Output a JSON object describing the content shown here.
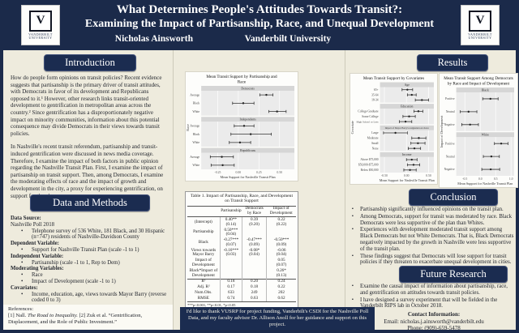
{
  "header": {
    "title_line1": "What Determines People's Attitudes Towards Transit?:",
    "title_line2": "Examining the Impact of Partisanship, Race, and Unequal Development",
    "author": "Nicholas Ainsworth",
    "affiliation": "Vanderbilt University",
    "logo": {
      "letter": "V",
      "name_line1": "VANDERBILT",
      "name_line2": "UNIVERSITY"
    }
  },
  "colors": {
    "navy": "#1b2a4a",
    "cream": "#eeebdd",
    "panel": "#fdfdfb",
    "strip": "#d6d6d6",
    "plot_bg": "#ebebeb"
  },
  "introduction": {
    "heading": "Introduction",
    "p1": "How do people form opinions on transit policies? Recent evidence suggests that partisanship is the primary driver of transit attitudes, with Democrats in favor of its development and Republicans opposed to it.¹  However, other research links transit-oriented development to gentrification in metropolitan areas across the country.²  Since gentrification has a disproportionately negative impact on minority communities, information about this potential consequence may divide Democrats in their views towards transit policies.",
    "p2": "In Nashville's recent transit referendum, partisanship and transit-induced gentrification were discussed in news media coverage. Therefore, I examine the impact of both factors in public opinion regarding the Nashville Transit Plan. First, I examine the impact of partisanship on transit support. Then, among Democrats, I examine the moderating effects of race and the impact of growth and development in the city, a proxy for experiencing gentrification, on support for the plan."
  },
  "data_methods": {
    "heading": "Data and Methods",
    "groups": [
      {
        "label": "Data Source:",
        "lead": "Nashville Poll 2018",
        "item0": "Telephone survey of 536 White, 181 Black, and 30 Hispanic (n=747) residents of Nashville-Davidson County"
      },
      {
        "label": "Dependent Variable:",
        "item0": "Support for Nashville Transit Plan  (scale -1 to 1)"
      },
      {
        "label": "Independent Variable:",
        "item0": "Partisanship  (scale -1 to 1, Rep to Dem)"
      },
      {
        "label": "Moderating Variables:",
        "item0": "Race",
        "item1": "Impact of Development (scale -1 to 1)"
      },
      {
        "label": "Covariates:",
        "item0": "Income, education, age, views towards Mayor Barry (reverse coded 0 to 3)"
      }
    ]
  },
  "references": {
    "label": "References:",
    "prefix": "[1] Nall. ",
    "italic": "The Road to Inequality.",
    "rest": " [2] Zuk et al. “Gentrification, Displacement, and the Role of Public Investment.”"
  },
  "results": {
    "heading": "Results"
  },
  "table": {
    "caption": "Table 1. Impact of Partisanship, Race, and Development on Transit Support",
    "col_headers": [
      "",
      "Partisanship",
      "Democrats by Race",
      "Impact of Development"
    ],
    "rows": [
      [
        "(Intercept)",
        "0.40**\n(0.14)",
        "0.39\n(0.20)",
        "0.22\n(0.22)"
      ],
      [
        "Partisanship",
        "0.50***\n(0.04)",
        "",
        ""
      ],
      [
        "Black",
        "-0.27***\n(0.07)",
        "-0.47***\n(0.09)",
        "-0.50***\n(0.09)"
      ],
      [
        "Views towards Mayor Barry",
        "-0.16***\n(0.03)",
        "-0.08*\n(0.04)",
        "-0.06\n(0.04)"
      ],
      [
        "Impact of Development",
        "",
        "",
        "0.05\n(0.07)"
      ],
      [
        "Black*Impact of Development",
        "",
        "",
        "0.26*\n(0.13)"
      ],
      [
        "R²",
        "0.18",
        "0.20",
        "0.24"
      ],
      [
        "Adj. R²",
        "0.17",
        "0.18",
        "0.22"
      ],
      [
        "Num.Obs.",
        "633",
        "249",
        "202"
      ],
      [
        "RMSE",
        "0.74",
        "0.63",
        "0.62"
      ]
    ],
    "sig_note": "***p<0.001, **p<0.01, *p<0.05",
    "note": "Note: Includes controls for age, education, and income"
  },
  "conclusion": {
    "heading": "Conclusion",
    "items": [
      "Partisanship significantly influenced opinions on the transit plan.",
      "Among Democrats, support for transit was moderated by race. Black Democrats were less supportive of the plan than Whites.",
      "Experiences with development moderated transit support among Black Democrats but not White Democrats. That is, Black Democrats negatively impacted by the growth in Nashville were less supportive of the transit plan.",
      "These findings suggest that Democrats will lose support for transit policies if they threaten to exacerbate unequal development in cities."
    ]
  },
  "future": {
    "heading": "Future Research",
    "items": [
      "Examine the causal impact of information about partisanship, race, and gentrification on attitudes towards transit policies.",
      "I have designed a survey experiment that will be fielded in the Vanderbilt RIPS lab in October 2018."
    ]
  },
  "acknowledgment": "I'd like to thank VUSRP for project funding, Vanderbilt's CSDI for the Nashville Poll Data, and my faculty advisor Dr. Allison Anoll for her guidance and support on this project.",
  "contact": {
    "heading": "Contact Information:",
    "email": "Email: nicholas.j.ainsworth@vanderbilt.edu",
    "phone": "Phone: (909)-659-5478"
  },
  "chart_data": [
    {
      "type": "scatter",
      "title_lines": [
        "Mean Transit Support by Partisanship and",
        "Race"
      ],
      "xlabel": "Mean Support for Nashville Transit Plan",
      "ylabel": "Race",
      "xlim": [
        -0.45,
        0.68
      ],
      "x_ticks": [
        -0.25,
        0,
        0.25,
        0.5
      ],
      "x_tick_labels": [
        "-0.25",
        "0.00",
        "0.25",
        "0.50"
      ],
      "grid": true,
      "facets": [
        {
          "label": "Democrats",
          "rows": [
            {
              "label": "Average",
              "mean": 0.34,
              "lo": 0.26,
              "hi": 0.42
            },
            {
              "label": "Black",
              "mean": 0.06,
              "lo": -0.07,
              "hi": 0.19
            },
            {
              "label": "White",
              "mean": 0.47,
              "lo": 0.37,
              "hi": 0.58
            }
          ]
        },
        {
          "label": "Independents",
          "rows": [
            {
              "label": "Average",
              "mean": 0.07,
              "lo": -0.05,
              "hi": 0.19
            },
            {
              "label": "Black",
              "mean": 0.15,
              "lo": -0.09,
              "hi": 0.4
            },
            {
              "label": "White",
              "mean": 0.02,
              "lo": -0.11,
              "hi": 0.15
            }
          ]
        },
        {
          "label": "Republicans",
          "rows": [
            {
              "label": "Average",
              "mean": -0.2,
              "lo": -0.34,
              "hi": -0.06
            },
            {
              "label": "White",
              "mean": -0.19,
              "lo": -0.33,
              "hi": -0.05
            }
          ]
        }
      ]
    },
    {
      "type": "scatter",
      "title_lines": [
        "Mean Transit Support by Covariates"
      ],
      "xlabel": "Mean Support for Nashville Transit Plan",
      "ylabel": "Covariate",
      "xlim": [
        -0.6,
        0.62
      ],
      "x_ticks": [
        -0.5,
        0,
        0.5
      ],
      "x_tick_labels": [
        "-0.50",
        "0.00",
        "0.50"
      ],
      "grid": true,
      "facets": [
        {
          "label": "Age",
          "rows": [
            {
              "label": "65+",
              "mean": 0.02,
              "lo": -0.1,
              "hi": 0.14
            },
            {
              "label": "35-64",
              "mean": 0.12,
              "lo": 0.02,
              "hi": 0.22
            },
            {
              "label": "18-34",
              "mean": 0.35,
              "lo": 0.2,
              "hi": 0.5
            }
          ]
        },
        {
          "label": "Education",
          "rows": [
            {
              "label": "College Graduate",
              "mean": 0.27,
              "lo": 0.17,
              "hi": 0.37
            },
            {
              "label": "Some College",
              "mean": 0.06,
              "lo": -0.08,
              "hi": 0.2
            },
            {
              "label": "High School or Less",
              "mean": -0.02,
              "lo": -0.16,
              "hi": 0.12
            }
          ]
        },
        {
          "label": "Impact of Mayor Barry's resignation on views",
          "rows": [
            {
              "label": "Large",
              "mean": -0.25,
              "lo": -0.52,
              "hi": 0.02
            },
            {
              "label": "Moderate",
              "mean": 0.28,
              "lo": 0.12,
              "hi": 0.44
            },
            {
              "label": "Small",
              "mean": 0.26,
              "lo": 0.1,
              "hi": 0.42
            },
            {
              "label": "None",
              "mean": 0.18,
              "lo": 0.04,
              "hi": 0.32
            }
          ]
        },
        {
          "label": "Income",
          "rows": [
            {
              "label": "Above $75,000",
              "mean": 0.12,
              "lo": 0,
              "hi": 0.24
            },
            {
              "label": "$50,000-$75,000",
              "mean": 0.16,
              "lo": 0.02,
              "hi": 0.3
            },
            {
              "label": "Below $50,000",
              "mean": 0.08,
              "lo": -0.06,
              "hi": 0.22
            }
          ]
        }
      ]
    },
    {
      "type": "scatter",
      "title_lines": [
        "Mean Transit Support Among Democrats",
        "by Race and Impact of Development"
      ],
      "xlabel": "Mean Support for Nashville Transit Plan",
      "ylabel": "Impact of Development",
      "xlim": [
        -0.78,
        1.1
      ],
      "x_ticks": [
        -0.5,
        0,
        0.5,
        1
      ],
      "x_tick_labels": [
        "-0.5",
        "0.0",
        "0.5",
        "1.0"
      ],
      "grid": true,
      "facets": [
        {
          "label": "Black",
          "rows": [
            {
              "label": "Positive",
              "mean": 0.33,
              "lo": 0.08,
              "hi": 0.58
            },
            {
              "label": "Neutral",
              "mean": -0.38,
              "lo": -0.65,
              "hi": -0.11
            },
            {
              "label": "Negative",
              "mean": -0.33,
              "lo": -0.6,
              "hi": -0.06
            }
          ]
        },
        {
          "label": "White",
          "rows": [
            {
              "label": "Positive",
              "mean": 0.68,
              "lo": 0.46,
              "hi": 0.9
            },
            {
              "label": "Neutral",
              "mean": 0.36,
              "lo": 0.1,
              "hi": 0.62
            },
            {
              "label": "Negative",
              "mean": 0.34,
              "lo": 0.05,
              "hi": 0.63
            }
          ]
        }
      ]
    }
  ]
}
